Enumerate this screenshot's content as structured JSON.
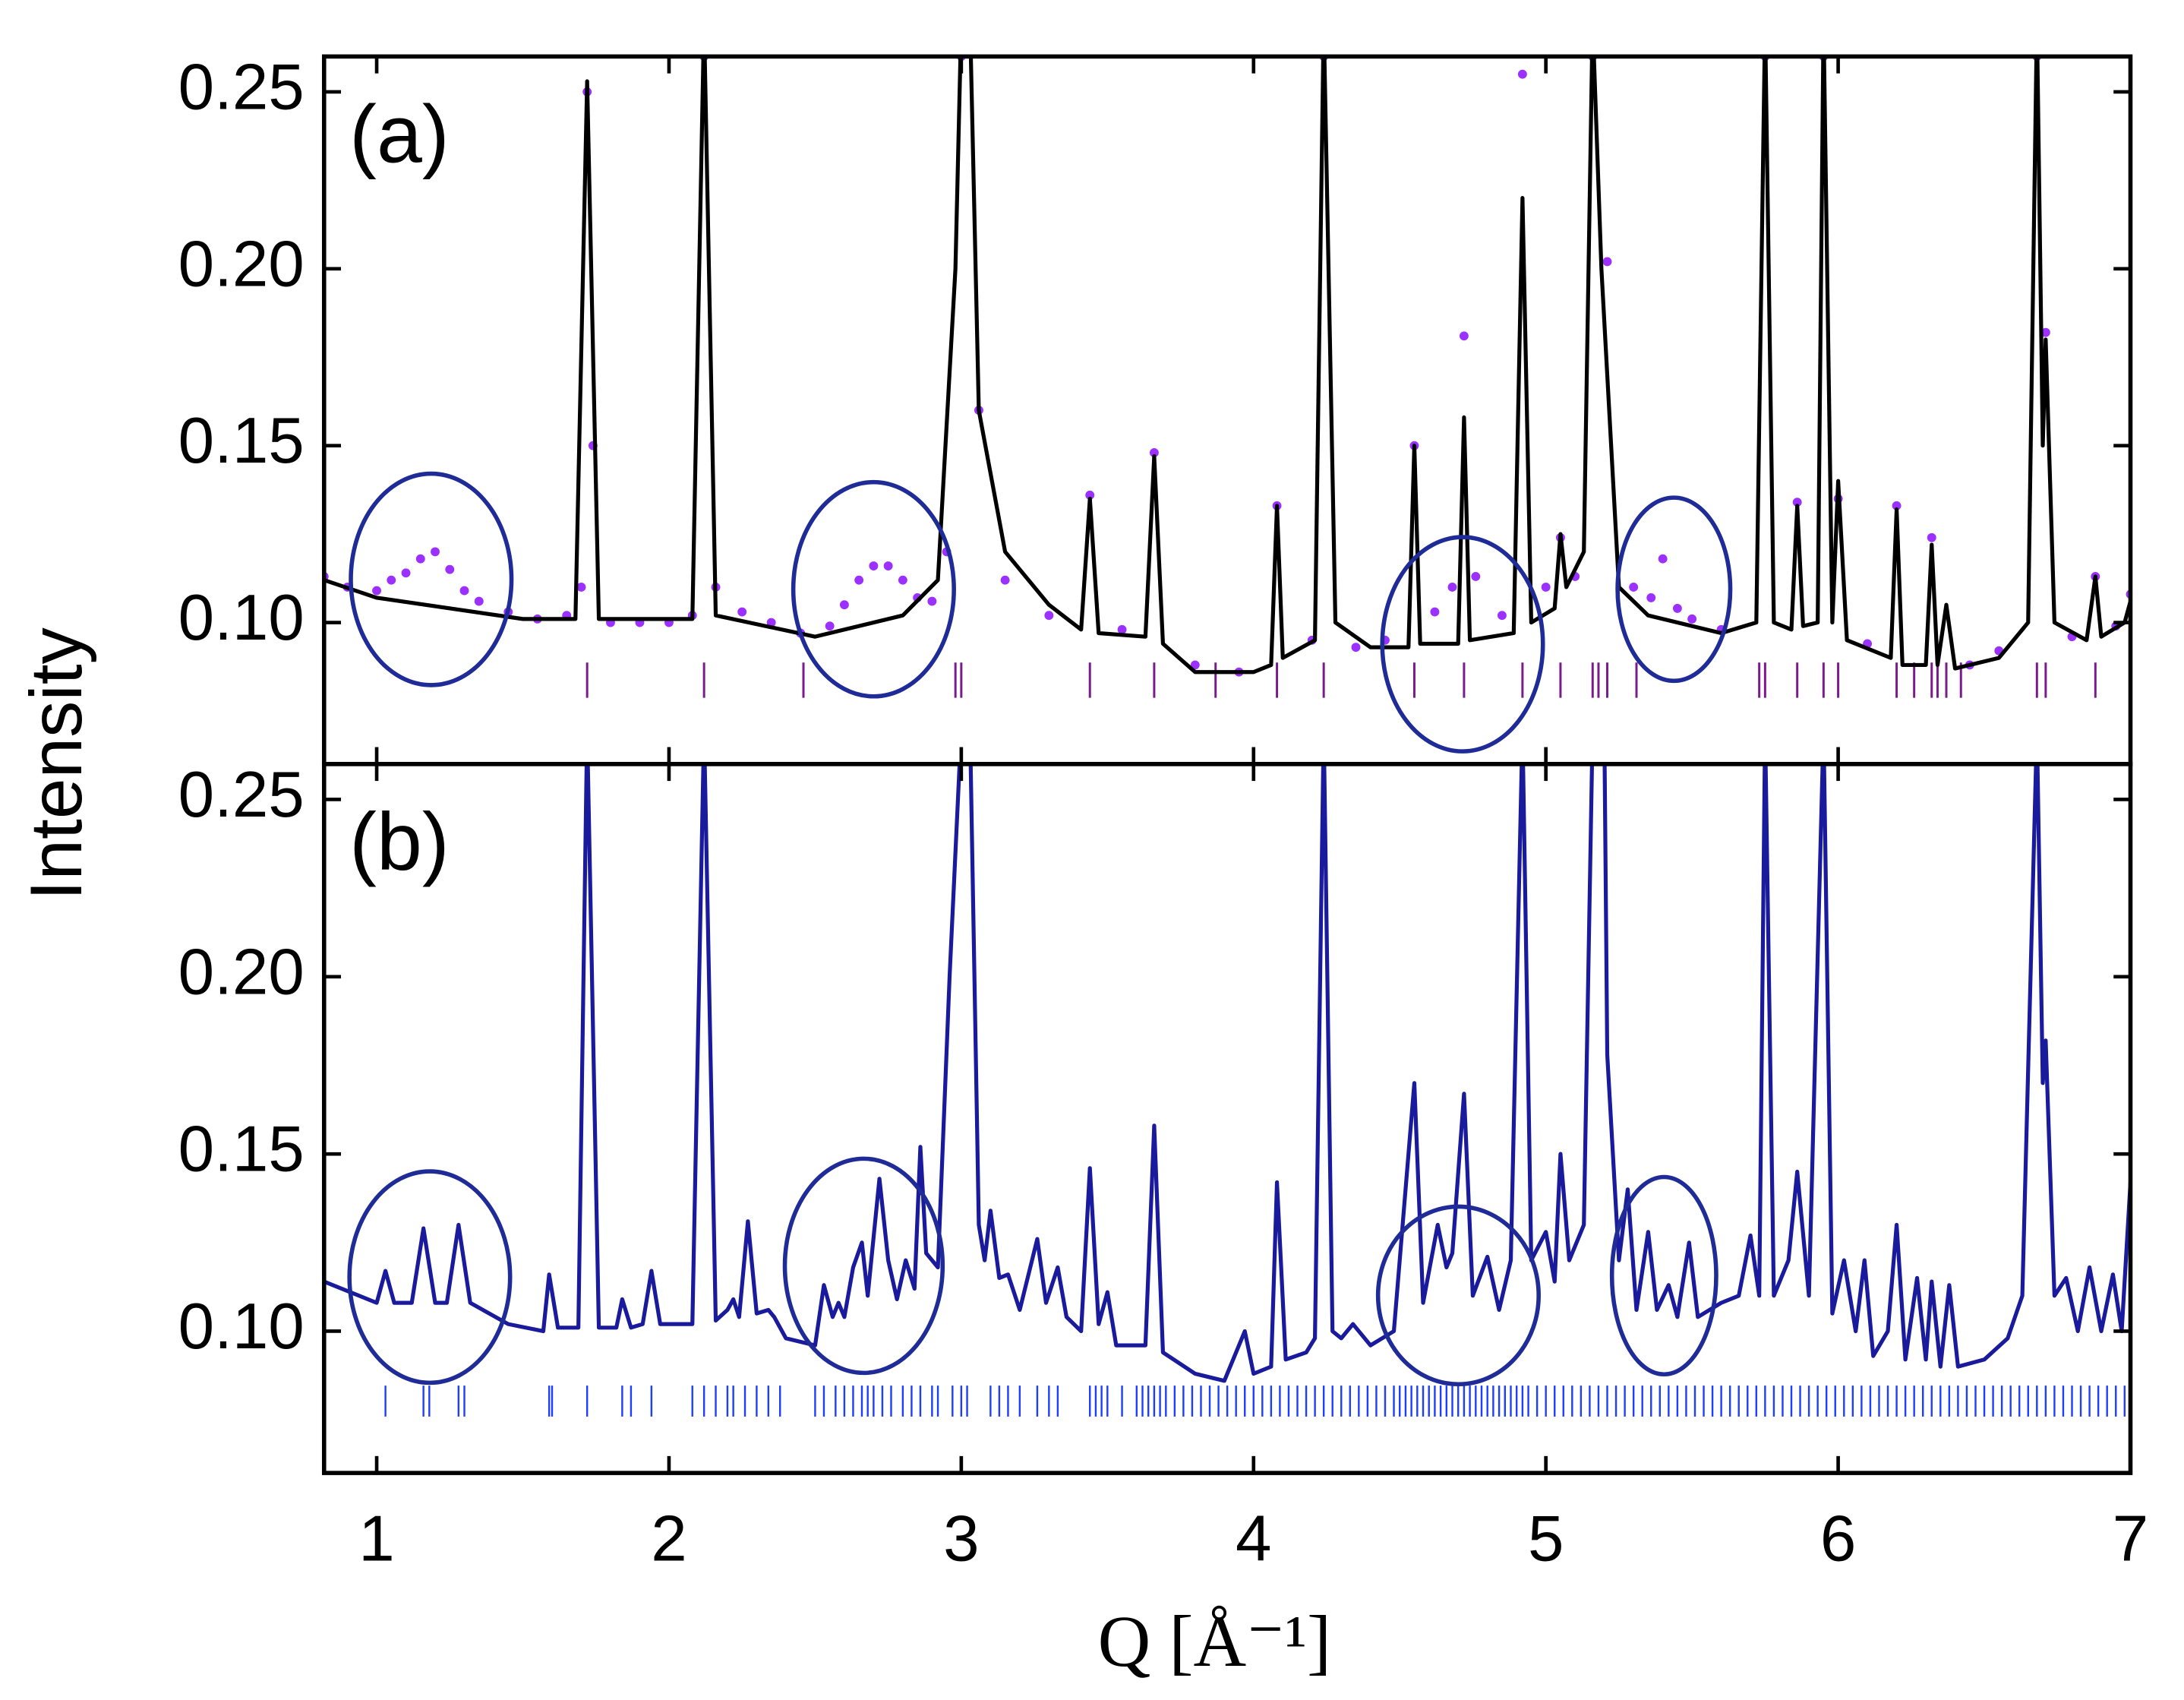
{
  "chart_data": [
    {
      "type": "line",
      "label": "(a)",
      "ylabel": "Intensity",
      "xlim": [
        0.82,
        7
      ],
      "ylim": [
        0.06,
        0.26
      ],
      "yticks": [
        {
          "value": 0.1,
          "label": "0.10"
        },
        0.15,
        {
          "value": 0.2,
          "label": "0.20"
        },
        0.25
      ],
      "series": [
        {
          "mode": "markers",
          "color": "#9b30ff",
          "x": [
            0.82,
            0.9,
            1.0,
            1.05,
            1.1,
            1.15,
            1.2,
            1.25,
            1.3,
            1.35,
            1.45,
            1.55,
            1.65,
            1.7,
            1.72,
            1.74,
            1.8,
            1.9,
            2.0,
            2.08,
            2.12,
            2.16,
            2.25,
            2.35,
            2.45,
            2.55,
            2.6,
            2.65,
            2.7,
            2.75,
            2.8,
            2.85,
            2.9,
            2.95,
            3.0,
            3.06,
            3.15,
            3.3,
            3.44,
            3.55,
            3.66,
            3.8,
            3.95,
            4.08,
            4.2,
            4.24,
            4.35,
            4.45,
            4.55,
            4.62,
            4.68,
            4.72,
            4.76,
            4.85,
            4.92,
            5.0,
            5.05,
            5.1,
            5.16,
            5.21,
            5.3,
            5.36,
            5.4,
            5.45,
            5.5,
            5.6,
            5.75,
            5.86,
            5.95,
            6.0,
            6.1,
            6.2,
            6.32,
            6.45,
            6.55,
            6.68,
            6.71,
            6.8,
            6.88,
            6.95,
            7.0
          ],
          "values": [
            0.113,
            0.11,
            0.109,
            0.112,
            0.114,
            0.118,
            0.12,
            0.115,
            0.109,
            0.106,
            0.103,
            0.101,
            0.102,
            0.11,
            0.25,
            0.15,
            0.1,
            0.1,
            0.1,
            0.102,
            0.26,
            0.11,
            0.103,
            0.1,
            0.097,
            0.099,
            0.105,
            0.112,
            0.116,
            0.116,
            0.112,
            0.107,
            0.106,
            0.12,
            0.26,
            0.16,
            0.112,
            0.102,
            0.136,
            0.098,
            0.148,
            0.088,
            0.086,
            0.133,
            0.095,
            0.26,
            0.093,
            0.095,
            0.15,
            0.103,
            0.11,
            0.181,
            0.113,
            0.102,
            0.255,
            0.11,
            0.124,
            0.113,
            0.26,
            0.202,
            0.11,
            0.107,
            0.118,
            0.104,
            0.101,
            0.098,
            0.26,
            0.134,
            0.26,
            0.135,
            0.094,
            0.133,
            0.124,
            0.088,
            0.092,
            0.26,
            0.182,
            0.096,
            0.113,
            0.099,
            0.108
          ]
        },
        {
          "mode": "line",
          "color": "#000000",
          "x": [
            0.82,
            1.0,
            1.5,
            1.68,
            1.72,
            1.76,
            2.08,
            2.12,
            2.16,
            2.5,
            2.8,
            2.92,
            2.98,
            3.0,
            3.03,
            3.06,
            3.15,
            3.3,
            3.41,
            3.44,
            3.47,
            3.63,
            3.66,
            3.69,
            3.8,
            4.0,
            4.06,
            4.08,
            4.1,
            4.21,
            4.24,
            4.28,
            4.4,
            4.53,
            4.55,
            4.57,
            4.7,
            4.72,
            4.74,
            4.89,
            4.92,
            4.95,
            5.03,
            5.05,
            5.07,
            5.13,
            5.16,
            5.19,
            5.21,
            5.25,
            5.35,
            5.6,
            5.72,
            5.75,
            5.78,
            5.84,
            5.86,
            5.88,
            5.93,
            5.95,
            5.98,
            6.0,
            6.03,
            6.18,
            6.2,
            6.22,
            6.3,
            6.32,
            6.34,
            6.37,
            6.4,
            6.55,
            6.65,
            6.68,
            6.7,
            6.71,
            6.74,
            6.85,
            6.88,
            6.9,
            6.98,
            7.0
          ],
          "values": [
            0.112,
            0.107,
            0.101,
            0.101,
            0.253,
            0.101,
            0.101,
            0.27,
            0.102,
            0.096,
            0.102,
            0.112,
            0.2,
            0.27,
            0.27,
            0.16,
            0.12,
            0.105,
            0.098,
            0.135,
            0.097,
            0.096,
            0.147,
            0.094,
            0.086,
            0.086,
            0.088,
            0.133,
            0.09,
            0.095,
            0.27,
            0.1,
            0.093,
            0.093,
            0.15,
            0.094,
            0.094,
            0.158,
            0.095,
            0.097,
            0.22,
            0.1,
            0.104,
            0.125,
            0.11,
            0.12,
            0.27,
            0.2,
            0.17,
            0.11,
            0.102,
            0.097,
            0.1,
            0.27,
            0.1,
            0.098,
            0.133,
            0.099,
            0.1,
            0.27,
            0.1,
            0.14,
            0.095,
            0.09,
            0.132,
            0.088,
            0.088,
            0.122,
            0.088,
            0.105,
            0.087,
            0.09,
            0.1,
            0.27,
            0.15,
            0.18,
            0.1,
            0.095,
            0.113,
            0.096,
            0.1,
            0.106
          ]
        }
      ],
      "reflections": {
        "color": "#7a1a8c",
        "x": [
          1.72,
          2.12,
          2.46,
          2.98,
          3.0,
          3.44,
          3.66,
          3.87,
          4.08,
          4.24,
          4.55,
          4.72,
          4.92,
          5.05,
          5.16,
          5.18,
          5.21,
          5.31,
          5.73,
          5.75,
          5.86,
          5.95,
          6.0,
          6.2,
          6.26,
          6.32,
          6.34,
          6.37,
          6.42,
          6.68,
          6.71,
          6.88,
          7.0
        ]
      }
    },
    {
      "type": "line",
      "label": "(b)",
      "xlabel": "Q [Å⁻¹]",
      "xlim": [
        0.82,
        7
      ],
      "ylim": [
        0.06,
        0.26
      ],
      "xticks": [
        1,
        2,
        3,
        4,
        5,
        6,
        7
      ],
      "yticks": [
        {
          "value": 0.1,
          "label": "0.10"
        },
        0.15,
        {
          "value": 0.2,
          "label": "0.20"
        },
        0.25
      ],
      "series": [
        {
          "mode": "line",
          "color": "#1a1a9c",
          "x": [
            0.82,
            1.0,
            1.03,
            1.06,
            1.12,
            1.16,
            1.2,
            1.24,
            1.28,
            1.32,
            1.45,
            1.57,
            1.59,
            1.62,
            1.69,
            1.72,
            1.76,
            1.82,
            1.84,
            1.87,
            1.91,
            1.94,
            1.97,
            2.08,
            2.12,
            2.16,
            2.2,
            2.22,
            2.24,
            2.27,
            2.3,
            2.34,
            2.36,
            2.4,
            2.5,
            2.53,
            2.56,
            2.58,
            2.6,
            2.63,
            2.66,
            2.68,
            2.72,
            2.75,
            2.78,
            2.81,
            2.84,
            2.86,
            2.88,
            2.92,
            2.96,
            3.0,
            3.03,
            3.06,
            3.08,
            3.1,
            3.13,
            3.16,
            3.2,
            3.26,
            3.29,
            3.33,
            3.36,
            3.41,
            3.44,
            3.47,
            3.5,
            3.53,
            3.63,
            3.66,
            3.69,
            3.8,
            3.9,
            3.97,
            4.0,
            4.06,
            4.08,
            4.11,
            4.18,
            4.21,
            4.24,
            4.27,
            4.3,
            4.34,
            4.4,
            4.48,
            4.55,
            4.58,
            4.63,
            4.66,
            4.68,
            4.72,
            4.75,
            4.8,
            4.84,
            4.88,
            4.92,
            4.95,
            5.0,
            5.03,
            5.05,
            5.08,
            5.13,
            5.16,
            5.2,
            5.21,
            5.25,
            5.28,
            5.31,
            5.35,
            5.38,
            5.42,
            5.45,
            5.49,
            5.52,
            5.6,
            5.66,
            5.7,
            5.73,
            5.75,
            5.78,
            5.83,
            5.86,
            5.9,
            5.95,
            5.98,
            6.02,
            6.06,
            6.09,
            6.12,
            6.17,
            6.2,
            6.23,
            6.27,
            6.3,
            6.32,
            6.35,
            6.38,
            6.41,
            6.5,
            6.58,
            6.63,
            6.68,
            6.7,
            6.71,
            6.74,
            6.78,
            6.82,
            6.86,
            6.9,
            6.94,
            6.97,
            7.0
          ],
          "values": [
            0.114,
            0.108,
            0.117,
            0.108,
            0.108,
            0.129,
            0.108,
            0.108,
            0.13,
            0.108,
            0.102,
            0.1,
            0.116,
            0.101,
            0.101,
            0.27,
            0.101,
            0.101,
            0.109,
            0.101,
            0.102,
            0.117,
            0.102,
            0.102,
            0.27,
            0.103,
            0.106,
            0.109,
            0.104,
            0.131,
            0.105,
            0.106,
            0.104,
            0.098,
            0.096,
            0.113,
            0.104,
            0.108,
            0.104,
            0.118,
            0.125,
            0.11,
            0.143,
            0.12,
            0.109,
            0.12,
            0.112,
            0.152,
            0.122,
            0.118,
            0.2,
            0.27,
            0.27,
            0.13,
            0.12,
            0.134,
            0.115,
            0.116,
            0.106,
            0.126,
            0.108,
            0.118,
            0.104,
            0.1,
            0.146,
            0.102,
            0.111,
            0.096,
            0.096,
            0.158,
            0.094,
            0.088,
            0.086,
            0.1,
            0.088,
            0.09,
            0.142,
            0.092,
            0.094,
            0.098,
            0.27,
            0.1,
            0.098,
            0.102,
            0.096,
            0.1,
            0.17,
            0.108,
            0.13,
            0.118,
            0.122,
            0.167,
            0.11,
            0.121,
            0.106,
            0.12,
            0.27,
            0.12,
            0.128,
            0.114,
            0.15,
            0.12,
            0.13,
            0.27,
            0.27,
            0.178,
            0.12,
            0.14,
            0.106,
            0.128,
            0.106,
            0.113,
            0.104,
            0.125,
            0.104,
            0.108,
            0.11,
            0.127,
            0.11,
            0.27,
            0.11,
            0.12,
            0.145,
            0.11,
            0.27,
            0.105,
            0.12,
            0.1,
            0.12,
            0.093,
            0.1,
            0.13,
            0.092,
            0.115,
            0.092,
            0.114,
            0.09,
            0.113,
            0.09,
            0.092,
            0.098,
            0.11,
            0.27,
            0.17,
            0.182,
            0.11,
            0.115,
            0.1,
            0.118,
            0.1,
            0.116,
            0.1,
            0.142
          ]
        }
      ],
      "reflections": {
        "color": "#1f3fff",
        "x": [
          1.03,
          1.16,
          1.18,
          1.28,
          1.3,
          1.59,
          1.6,
          1.72,
          1.84,
          1.87,
          1.94,
          2.08,
          2.12,
          2.16,
          2.2,
          2.22,
          2.26,
          2.3,
          2.34,
          2.38,
          2.5,
          2.53,
          2.57,
          2.6,
          2.63,
          2.66,
          2.68,
          2.7,
          2.73,
          2.76,
          2.8,
          2.83,
          2.86,
          2.9,
          2.92,
          2.97,
          3.0,
          3.02,
          3.1,
          3.13,
          3.16,
          3.2,
          3.26,
          3.3,
          3.33,
          3.44,
          3.46,
          3.48,
          3.5,
          3.55,
          3.6,
          3.62,
          3.64,
          3.66,
          3.68,
          3.7,
          3.73,
          3.76,
          3.79,
          3.82,
          3.85,
          3.88,
          3.91,
          3.94,
          3.97,
          4.0,
          4.03,
          4.06,
          4.09,
          4.12,
          4.15,
          4.18,
          4.21,
          4.24,
          4.27,
          4.3,
          4.33,
          4.36,
          4.39,
          4.42,
          4.45,
          4.48,
          4.5,
          4.52,
          4.54,
          4.56,
          4.58,
          4.6,
          4.62,
          4.64,
          4.66,
          4.68,
          4.7,
          4.72,
          4.74,
          4.76,
          4.78,
          4.8,
          4.82,
          4.84,
          4.86,
          4.88,
          4.9,
          4.92,
          4.94,
          4.97,
          5.0,
          5.03,
          5.06,
          5.09,
          5.12,
          5.15,
          5.18,
          5.21,
          5.24,
          5.27,
          5.3,
          5.33,
          5.36,
          5.39,
          5.42,
          5.45,
          5.48,
          5.51,
          5.54,
          5.57,
          5.6,
          5.63,
          5.66,
          5.69,
          5.72,
          5.75,
          5.78,
          5.81,
          5.84,
          5.87,
          5.9,
          5.93,
          5.96,
          5.99,
          6.02,
          6.05,
          6.08,
          6.11,
          6.14,
          6.17,
          6.2,
          6.23,
          6.26,
          6.29,
          6.32,
          6.35,
          6.38,
          6.41,
          6.44,
          6.47,
          6.5,
          6.53,
          6.56,
          6.59,
          6.62,
          6.65,
          6.68,
          6.71,
          6.74,
          6.77,
          6.8,
          6.83,
          6.86,
          6.89,
          6.92,
          6.95,
          6.98,
          7.0
        ]
      }
    }
  ]
}
